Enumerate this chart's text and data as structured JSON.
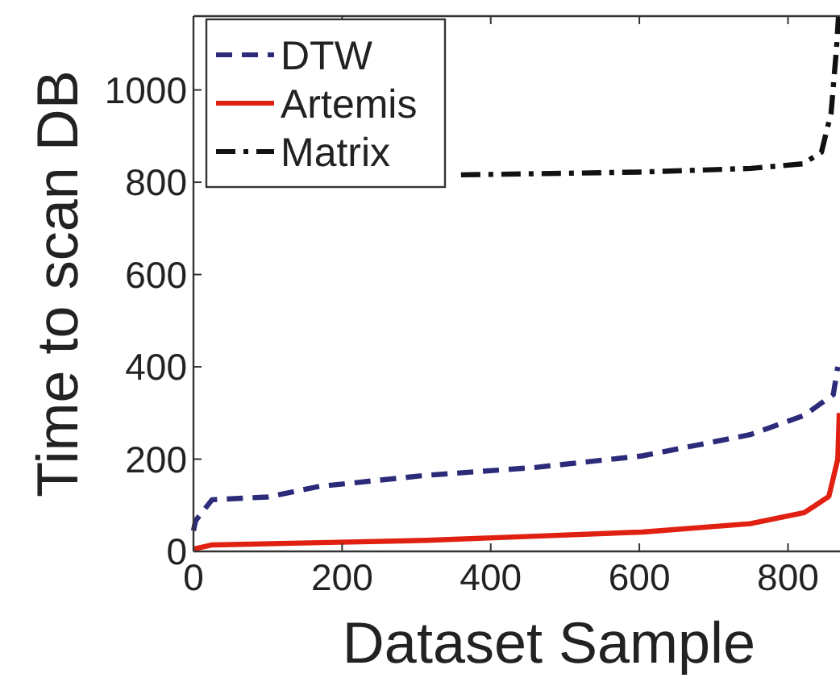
{
  "chart_data": {
    "type": "line",
    "xlabel": "Dataset Sample",
    "ylabel": "Time to scan DB",
    "xlim": [
      0,
      870
    ],
    "ylim": [
      0,
      1160
    ],
    "xticks": [
      0,
      200,
      400,
      600,
      800
    ],
    "yticks": [
      0,
      200,
      400,
      600,
      800,
      1000
    ],
    "legend": "top left",
    "grid": false,
    "series": [
      {
        "name": "DTW",
        "color": "#2b2b7a",
        "line_style": "dashed",
        "x": [
          0,
          3,
          25,
          100,
          170,
          314,
          460,
          604,
          749,
          822,
          861,
          867
        ],
        "values": [
          45,
          67,
          112,
          118,
          141,
          165,
          182,
          207,
          253,
          295,
          340,
          400
        ]
      },
      {
        "name": "Artemis",
        "color": "#e02010",
        "line_style": "solid",
        "x": [
          0,
          25,
          170,
          314,
          460,
          604,
          749,
          822,
          855,
          867,
          869
        ],
        "values": [
          5,
          14,
          19,
          24,
          33,
          42,
          60,
          84,
          119,
          200,
          300
        ]
      },
      {
        "name": "Matrix",
        "color": "#111111",
        "line_style": "dashdot",
        "x": [
          360,
          400,
          600,
          750,
          820,
          845,
          858,
          865,
          868
        ],
        "values": [
          816,
          817,
          822,
          830,
          840,
          865,
          950,
          1084,
          1160
        ]
      }
    ]
  }
}
